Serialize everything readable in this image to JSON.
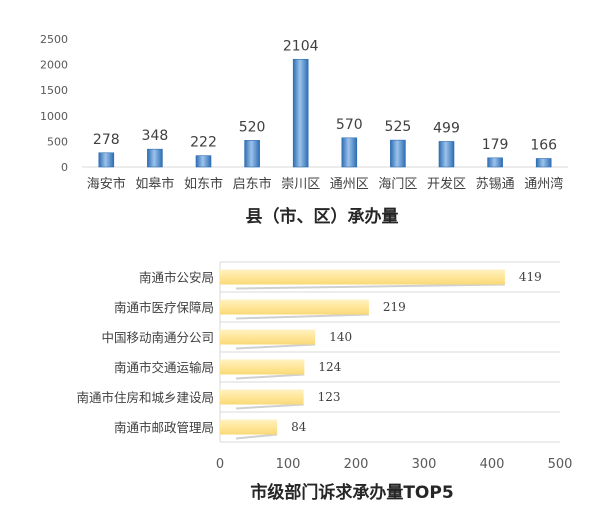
{
  "chart_data": [
    {
      "type": "bar",
      "orientation": "vertical",
      "title": "县（市、区）承办量",
      "categories": [
        "海安市",
        "如皋市",
        "如东市",
        "启东市",
        "崇川区",
        "通州区",
        "海门区",
        "开发区",
        "苏锡通",
        "通州湾"
      ],
      "values": [
        278,
        348,
        222,
        520,
        2104,
        570,
        525,
        499,
        179,
        166
      ],
      "yticks": [
        "0",
        "500",
        "1000",
        "1500",
        "2000",
        "2500"
      ],
      "ylim": [
        0,
        2500
      ],
      "xlabel": "",
      "ylabel": "",
      "grid": false,
      "bar_color": "#5B9BD5"
    },
    {
      "type": "bar",
      "orientation": "horizontal",
      "title": "市级部门诉求承办量TOP5",
      "categories": [
        "南通市公安局",
        "南通市医疗保障局",
        "中国移动南通分公司",
        "南通市交通运输局",
        "南通市住房和城乡建设局",
        "南通市邮政管理局"
      ],
      "values": [
        419,
        219,
        140,
        124,
        123,
        84
      ],
      "xticks": [
        "0",
        "100",
        "200",
        "300",
        "400",
        "500"
      ],
      "xlim": [
        0,
        500
      ],
      "xlabel": "",
      "ylabel": "",
      "grid": true,
      "bar_color": "#FFE699"
    }
  ]
}
